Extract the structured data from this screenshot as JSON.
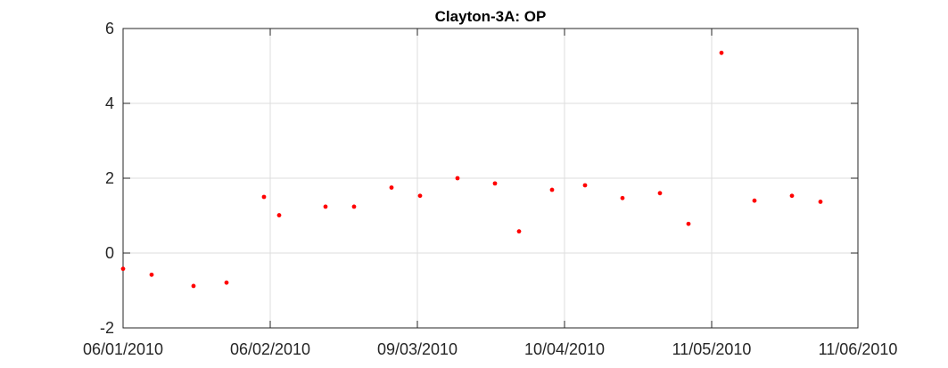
{
  "chart_data": {
    "type": "scatter",
    "title": "Clayton-3A: OP",
    "xlabel": "",
    "ylabel": "",
    "x_ticks": [
      "06/01/2010",
      "06/02/2010",
      "09/03/2010",
      "10/04/2010",
      "11/05/2010",
      "11/06/2010"
    ],
    "y_ticks": [
      "-2",
      "0",
      "2",
      "4",
      "6"
    ],
    "ylim": [
      -2,
      6
    ],
    "grid": true,
    "marker_color": "#ff0000",
    "points": [
      {
        "x": "06/01/2010",
        "y": -0.42
      },
      {
        "x": "",
        "y": -0.58
      },
      {
        "x": "",
        "y": -0.88
      },
      {
        "x": "",
        "y": -0.79
      },
      {
        "x": "",
        "y": 1.5
      },
      {
        "x": "",
        "y": 1.01
      },
      {
        "x": "",
        "y": 1.24
      },
      {
        "x": "",
        "y": 1.24
      },
      {
        "x": "",
        "y": 1.75
      },
      {
        "x": "",
        "y": 1.53
      },
      {
        "x": "",
        "y": 2.0
      },
      {
        "x": "",
        "y": 1.86
      },
      {
        "x": "",
        "y": 0.58
      },
      {
        "x": "",
        "y": 1.69
      },
      {
        "x": "",
        "y": 1.81
      },
      {
        "x": "",
        "y": 1.47
      },
      {
        "x": "",
        "y": 1.6
      },
      {
        "x": "",
        "y": 0.78
      },
      {
        "x": "",
        "y": 5.35
      },
      {
        "x": "",
        "y": 1.4
      },
      {
        "x": "",
        "y": 1.53
      },
      {
        "x": "",
        "y": 1.37
      }
    ]
  }
}
